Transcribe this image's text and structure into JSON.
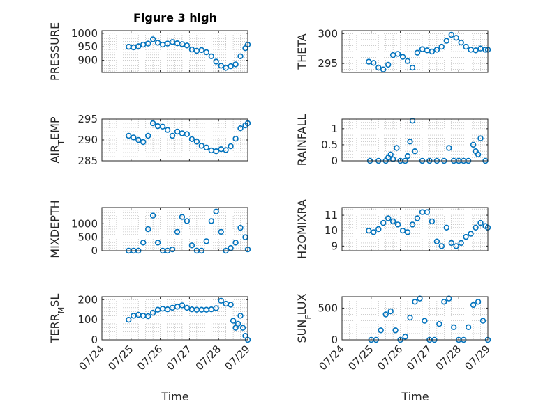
{
  "figure": {
    "title": "Figure 3 high"
  },
  "style": {
    "marker_color": "#0072BD",
    "axis_color": "#262626",
    "grid_color": "#b0b0b0"
  },
  "chart_data": [
    {
      "type": "scatter",
      "ylabel": "PRESSURE",
      "title": "Figure 3 high",
      "xlim": [
        "07/24",
        "07/29"
      ],
      "ylim": [
        855,
        1010
      ],
      "yticks": [
        900,
        950,
        1000
      ],
      "grid": true,
      "minor_grid": true,
      "x": [
        "07/24 22:00",
        "07/25 02:00",
        "07/25 06:00",
        "07/25 10:00",
        "07/25 14:00",
        "07/25 18:00",
        "07/25 22:00",
        "07/26 02:00",
        "07/26 06:00",
        "07/26 10:00",
        "07/26 14:00",
        "07/26 18:00",
        "07/26 22:00",
        "07/27 02:00",
        "07/27 06:00",
        "07/27 10:00",
        "07/27 14:00",
        "07/27 18:00",
        "07/27 22:00",
        "07/28 02:00",
        "07/28 06:00",
        "07/28 10:00",
        "07/28 14:00",
        "07/28 18:00",
        "07/28 22:00",
        "07/29 00:00"
      ],
      "y": [
        950,
        948,
        952,
        958,
        962,
        978,
        965,
        958,
        962,
        968,
        963,
        960,
        955,
        940,
        935,
        938,
        930,
        915,
        895,
        880,
        872,
        878,
        885,
        915,
        945,
        958
      ]
    },
    {
      "type": "scatter",
      "ylabel": "THETA",
      "xlim": [
        "07/24",
        "07/29"
      ],
      "ylim": [
        293.5,
        300.5
      ],
      "yticks": [
        295,
        300
      ],
      "grid": true,
      "minor_grid": true,
      "x": [
        "07/24 22:00",
        "07/25 02:00",
        "07/25 06:00",
        "07/25 10:00",
        "07/25 14:00",
        "07/25 18:00",
        "07/25 22:00",
        "07/26 02:00",
        "07/26 06:00",
        "07/26 10:00",
        "07/26 14:00",
        "07/26 18:00",
        "07/26 22:00",
        "07/27 02:00",
        "07/27 06:00",
        "07/27 10:00",
        "07/27 14:00",
        "07/27 18:00",
        "07/27 22:00",
        "07/28 02:00",
        "07/28 06:00",
        "07/28 10:00",
        "07/28 14:00",
        "07/28 18:00",
        "07/28 22:00",
        "07/29 00:00"
      ],
      "y": [
        295.3,
        295.1,
        294.3,
        294.0,
        294.8,
        296.4,
        296.6,
        296.1,
        295.4,
        294.3,
        296.8,
        297.4,
        297.2,
        297.0,
        297.3,
        297.8,
        298.8,
        299.8,
        299.3,
        298.5,
        297.8,
        297.3,
        297.2,
        297.5,
        297.3,
        297.3
      ]
    },
    {
      "type": "scatter",
      "ylabel": "AIR_T_EMP",
      "xlim": [
        "07/24",
        "07/29"
      ],
      "ylim": [
        285,
        295
      ],
      "yticks": [
        285,
        290,
        295
      ],
      "grid": true,
      "minor_grid": true,
      "x": [
        "07/24 22:00",
        "07/25 02:00",
        "07/25 06:00",
        "07/25 10:00",
        "07/25 14:00",
        "07/25 18:00",
        "07/25 22:00",
        "07/26 02:00",
        "07/26 06:00",
        "07/26 10:00",
        "07/26 14:00",
        "07/26 18:00",
        "07/26 22:00",
        "07/27 02:00",
        "07/27 06:00",
        "07/27 10:00",
        "07/27 14:00",
        "07/27 18:00",
        "07/27 22:00",
        "07/28 02:00",
        "07/28 06:00",
        "07/28 10:00",
        "07/28 14:00",
        "07/28 18:00",
        "07/28 22:00",
        "07/29 00:00"
      ],
      "y": [
        291.0,
        290.6,
        290.0,
        289.5,
        291.0,
        294.0,
        293.3,
        293.2,
        292.4,
        291.0,
        292.0,
        291.6,
        291.4,
        290.2,
        289.6,
        288.6,
        288.2,
        287.5,
        287.3,
        287.8,
        287.6,
        288.5,
        290.3,
        292.8,
        293.5,
        294.0
      ]
    },
    {
      "type": "scatter",
      "ylabel": "RAINFALL",
      "xlim": [
        "07/24",
        "07/29"
      ],
      "ylim": [
        0,
        1.3
      ],
      "yticks": [
        0,
        0.5,
        1
      ],
      "grid": true,
      "minor_grid": true,
      "x": [
        "07/24 23:00",
        "07/25 06:00",
        "07/25 12:00",
        "07/25 14:00",
        "07/25 16:00",
        "07/25 18:00",
        "07/25 21:00",
        "07/26 00:00",
        "07/26 04:00",
        "07/26 06:00",
        "07/26 08:00",
        "07/26 10:00",
        "07/26 12:00",
        "07/26 18:00",
        "07/27 00:00",
        "07/27 06:00",
        "07/27 12:00",
        "07/27 16:00",
        "07/27 20:00",
        "07/28 00:00",
        "07/28 04:00",
        "07/28 08:00",
        "07/28 12:00",
        "07/28 14:00",
        "07/28 16:00",
        "07/28 18:00",
        "07/28 22:00"
      ],
      "y": [
        0,
        0,
        0,
        0.1,
        0.2,
        0.05,
        0.4,
        0,
        0,
        0.15,
        0.6,
        1.25,
        0.3,
        0,
        0,
        0,
        0,
        0.4,
        0,
        0,
        0,
        0,
        0.5,
        0.3,
        0.2,
        0.7,
        0
      ]
    },
    {
      "type": "scatter",
      "ylabel": "MIXDEPTH",
      "xlim": [
        "07/24",
        "07/29"
      ],
      "ylim": [
        0,
        1600
      ],
      "yticks": [
        0,
        500,
        1000
      ],
      "grid": true,
      "minor_grid": true,
      "x": [
        "07/24 22:00",
        "07/25 02:00",
        "07/25 06:00",
        "07/25 10:00",
        "07/25 14:00",
        "07/25 18:00",
        "07/25 22:00",
        "07/26 02:00",
        "07/26 06:00",
        "07/26 10:00",
        "07/26 14:00",
        "07/26 18:00",
        "07/26 22:00",
        "07/27 02:00",
        "07/27 06:00",
        "07/27 10:00",
        "07/27 14:00",
        "07/27 18:00",
        "07/27 22:00",
        "07/28 02:00",
        "07/28 06:00",
        "07/28 10:00",
        "07/28 14:00",
        "07/28 18:00",
        "07/28 22:00",
        "07/29 00:00"
      ],
      "y": [
        0,
        0,
        0,
        300,
        800,
        1300,
        300,
        0,
        0,
        50,
        700,
        1250,
        1100,
        200,
        0,
        0,
        350,
        1100,
        1450,
        700,
        0,
        100,
        300,
        850,
        500,
        50
      ]
    },
    {
      "type": "scatter",
      "ylabel": "H2OMIXRA",
      "xlim": [
        "07/24",
        "07/29"
      ],
      "ylim": [
        8.7,
        11.5
      ],
      "yticks": [
        9,
        10,
        11
      ],
      "grid": true,
      "minor_grid": true,
      "x": [
        "07/24 22:00",
        "07/25 02:00",
        "07/25 06:00",
        "07/25 10:00",
        "07/25 14:00",
        "07/25 18:00",
        "07/25 22:00",
        "07/26 02:00",
        "07/26 06:00",
        "07/26 10:00",
        "07/26 14:00",
        "07/26 18:00",
        "07/26 22:00",
        "07/27 02:00",
        "07/27 06:00",
        "07/27 10:00",
        "07/27 14:00",
        "07/27 18:00",
        "07/27 22:00",
        "07/28 02:00",
        "07/28 06:00",
        "07/28 10:00",
        "07/28 14:00",
        "07/28 18:00",
        "07/28 22:00",
        "07/29 00:00"
      ],
      "y": [
        10.0,
        9.9,
        10.1,
        10.5,
        10.8,
        10.6,
        10.4,
        10.0,
        9.9,
        10.4,
        10.8,
        11.2,
        11.2,
        10.6,
        9.3,
        9.0,
        10.2,
        9.2,
        9.0,
        9.2,
        9.6,
        9.8,
        10.2,
        10.5,
        10.3,
        10.2
      ]
    },
    {
      "type": "scatter",
      "ylabel": "TERR_M_SL",
      "xlim": [
        "07/24",
        "07/29"
      ],
      "ylim": [
        0,
        215
      ],
      "yticks": [
        0,
        100,
        200
      ],
      "grid": true,
      "minor_grid": true,
      "x": [
        "07/24 22:00",
        "07/25 02:00",
        "07/25 06:00",
        "07/25 10:00",
        "07/25 14:00",
        "07/25 18:00",
        "07/25 22:00",
        "07/26 02:00",
        "07/26 06:00",
        "07/26 10:00",
        "07/26 14:00",
        "07/26 18:00",
        "07/26 22:00",
        "07/27 02:00",
        "07/27 06:00",
        "07/27 10:00",
        "07/27 14:00",
        "07/27 18:00",
        "07/27 22:00",
        "07/28 02:00",
        "07/28 06:00",
        "07/28 10:00",
        "07/28 12:00",
        "07/28 14:00",
        "07/28 16:00",
        "07/28 18:00",
        "07/28 20:00",
        "07/28 22:00",
        "07/29 00:00"
      ],
      "y": [
        100,
        120,
        125,
        120,
        118,
        135,
        150,
        155,
        152,
        160,
        165,
        172,
        160,
        152,
        150,
        150,
        150,
        152,
        158,
        195,
        180,
        175,
        95,
        60,
        80,
        120,
        60,
        20,
        0
      ]
    },
    {
      "type": "scatter",
      "ylabel": "SUN_F_LUX",
      "xlim": [
        "07/24",
        "07/29"
      ],
      "ylim": [
        0,
        680
      ],
      "yticks": [
        0,
        500
      ],
      "grid": true,
      "minor_grid": true,
      "x": [
        "07/25 00:00",
        "07/25 04:00",
        "07/25 08:00",
        "07/25 12:00",
        "07/25 16:00",
        "07/25 20:00",
        "07/26 00:00",
        "07/26 04:00",
        "07/26 08:00",
        "07/26 12:00",
        "07/26 16:00",
        "07/26 20:00",
        "07/27 00:00",
        "07/27 04:00",
        "07/27 08:00",
        "07/27 12:00",
        "07/27 16:00",
        "07/27 20:00",
        "07/28 00:00",
        "07/28 04:00",
        "07/28 08:00",
        "07/28 12:00",
        "07/28 16:00",
        "07/28 20:00",
        "07/29 00:00"
      ],
      "y": [
        0,
        0,
        150,
        400,
        450,
        150,
        0,
        50,
        350,
        600,
        650,
        300,
        0,
        0,
        250,
        600,
        650,
        200,
        0,
        0,
        200,
        550,
        600,
        300,
        0
      ]
    }
  ],
  "axes_text": {
    "time_ticks": [
      "07/24",
      "07/25",
      "07/26",
      "07/27",
      "07/28",
      "07/29"
    ],
    "xlabel_left": "Time",
    "xlabel_right": "Time"
  }
}
